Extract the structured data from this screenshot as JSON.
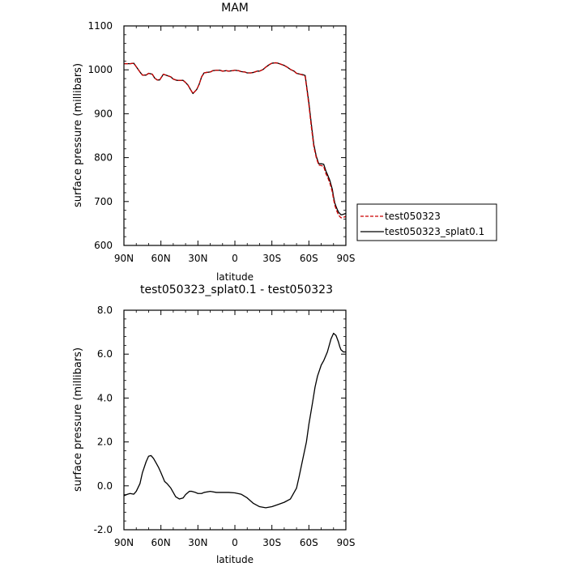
{
  "chart_data": [
    {
      "type": "line",
      "title": "MAM",
      "xlabel": "latitude",
      "ylabel": "surface pressure (millibars)",
      "xticks": [
        {
          "value": -90,
          "label": "90N"
        },
        {
          "value": -60,
          "label": "60N"
        },
        {
          "value": -30,
          "label": "30N"
        },
        {
          "value": 0,
          "label": "0"
        },
        {
          "value": 30,
          "label": "30S"
        },
        {
          "value": 60,
          "label": "60S"
        },
        {
          "value": 90,
          "label": "90S"
        }
      ],
      "yticks": [
        {
          "value": 600,
          "label": "600"
        },
        {
          "value": 700,
          "label": "700"
        },
        {
          "value": 800,
          "label": "800"
        },
        {
          "value": 900,
          "label": "900"
        },
        {
          "value": 1000,
          "label": "1000"
        },
        {
          "value": 1100,
          "label": "1100"
        }
      ],
      "xlim": [
        -90,
        90
      ],
      "ylim": [
        600,
        1100
      ],
      "grid": false,
      "legend": {
        "placement": "outside-right",
        "entries": [
          {
            "name": "test050323",
            "color": "#cc0000",
            "dash": "dashed"
          },
          {
            "name": "test050323_splat0.1",
            "color": "#000000",
            "dash": "solid"
          }
        ]
      },
      "x": [
        -90,
        -85,
        -82,
        -80,
        -77,
        -75,
        -72,
        -70,
        -67,
        -65,
        -63,
        -61,
        -58,
        -55,
        -52,
        -50,
        -47,
        -45,
        -42,
        -40,
        -38,
        -36,
        -34,
        -31,
        -29,
        -27,
        -25,
        -23,
        -20,
        -18,
        -15,
        -12,
        -10,
        -7,
        -5,
        -2,
        0,
        3,
        5,
        8,
        10,
        13,
        15,
        18,
        20,
        23,
        25,
        28,
        30,
        33,
        35,
        37,
        40,
        43,
        45,
        48,
        50,
        53,
        55,
        57,
        60,
        62,
        64,
        66,
        68,
        70,
        72,
        74,
        75,
        77,
        79,
        80,
        81,
        82,
        83,
        84,
        85,
        86,
        87,
        88,
        89,
        90
      ],
      "series": [
        {
          "name": "test050323",
          "color": "#cc0000",
          "dash": "dashed",
          "values": [
            1014,
            1014,
            1015,
            1007,
            995,
            988,
            988,
            992,
            990,
            981,
            977,
            977,
            990,
            987,
            984,
            979,
            976,
            976,
            976,
            971,
            965,
            955,
            946,
            955,
            967,
            984,
            993,
            994,
            995,
            998,
            999,
            999,
            997,
            998,
            997,
            998,
            999,
            998,
            996,
            995,
            993,
            993,
            994,
            997,
            997,
            1001,
            1006,
            1012,
            1015,
            1016,
            1015,
            1013,
            1010,
            1005,
            1001,
            997,
            992,
            990,
            988,
            985,
            920,
            870,
            825,
            800,
            783,
            782,
            780,
            762,
            757,
            742,
            722,
            705,
            692,
            683,
            676,
            670,
            666,
            663,
            663,
            664,
            665,
            666
          ]
        },
        {
          "name": "test050323_splat0.1",
          "color": "#000000",
          "dash": "solid",
          "values": [
            1014,
            1014,
            1015,
            1007,
            995,
            988,
            988,
            992,
            990,
            981,
            977,
            977,
            990,
            987,
            984,
            979,
            976,
            976,
            976,
            971,
            965,
            955,
            946,
            955,
            967,
            984,
            993,
            994,
            995,
            998,
            999,
            999,
            997,
            998,
            997,
            998,
            999,
            998,
            996,
            995,
            993,
            993,
            994,
            997,
            997,
            1001,
            1006,
            1012,
            1015,
            1016,
            1015,
            1013,
            1010,
            1005,
            1001,
            997,
            992,
            990,
            989,
            987,
            925,
            876,
            830,
            803,
            786,
            786,
            785,
            768,
            762,
            748,
            728,
            711,
            697,
            689,
            682,
            676,
            673,
            670,
            670,
            671,
            672,
            673
          ]
        }
      ]
    },
    {
      "type": "line",
      "title": "test050323_splat0.1 - test050323",
      "xlabel": "latitude",
      "ylabel": "surface pressure (millibars)",
      "xticks": [
        {
          "value": -90,
          "label": "90N"
        },
        {
          "value": -60,
          "label": "60N"
        },
        {
          "value": -30,
          "label": "30N"
        },
        {
          "value": 0,
          "label": "0"
        },
        {
          "value": 30,
          "label": "30S"
        },
        {
          "value": 60,
          "label": "60S"
        },
        {
          "value": 90,
          "label": "90S"
        }
      ],
      "yticks": [
        {
          "value": -2,
          "label": "-2.0"
        },
        {
          "value": 0,
          "label": "0.0"
        },
        {
          "value": 2,
          "label": "2.0"
        },
        {
          "value": 4,
          "label": "4.0"
        },
        {
          "value": 6,
          "label": "6.0"
        },
        {
          "value": 8,
          "label": "8.0"
        }
      ],
      "xlim": [
        -90,
        90
      ],
      "ylim": [
        -2,
        8
      ],
      "grid": false,
      "x": [
        -90,
        -87,
        -85,
        -82,
        -80,
        -77,
        -75,
        -72,
        -70,
        -68,
        -66,
        -64,
        -62,
        -60,
        -57,
        -55,
        -52,
        -50,
        -48,
        -45,
        -42,
        -40,
        -37,
        -35,
        -32,
        -30,
        -27,
        -25,
        -20,
        -15,
        -10,
        -5,
        0,
        5,
        10,
        15,
        20,
        25,
        30,
        35,
        40,
        45,
        50,
        52,
        55,
        58,
        60,
        63,
        65,
        67,
        70,
        72,
        75,
        78,
        80,
        82,
        84,
        85,
        86,
        87,
        88,
        89,
        90
      ],
      "series": [
        {
          "name": "test050323_splat0.1",
          "color": "#000000",
          "dash": "solid",
          "values": [
            -0.45,
            -0.38,
            -0.35,
            -0.38,
            -0.25,
            0.1,
            0.6,
            1.1,
            1.35,
            1.38,
            1.25,
            1.05,
            0.85,
            0.6,
            0.2,
            0.1,
            -0.1,
            -0.3,
            -0.5,
            -0.6,
            -0.55,
            -0.4,
            -0.25,
            -0.25,
            -0.3,
            -0.35,
            -0.35,
            -0.3,
            -0.25,
            -0.3,
            -0.3,
            -0.3,
            -0.32,
            -0.38,
            -0.55,
            -0.8,
            -0.95,
            -1.0,
            -0.95,
            -0.85,
            -0.75,
            -0.6,
            -0.1,
            0.4,
            1.2,
            2.0,
            2.8,
            3.8,
            4.5,
            5.0,
            5.5,
            5.7,
            6.1,
            6.7,
            6.95,
            6.85,
            6.55,
            6.35,
            6.2,
            6.15,
            6.1,
            6.1,
            6.1
          ]
        }
      ]
    }
  ]
}
